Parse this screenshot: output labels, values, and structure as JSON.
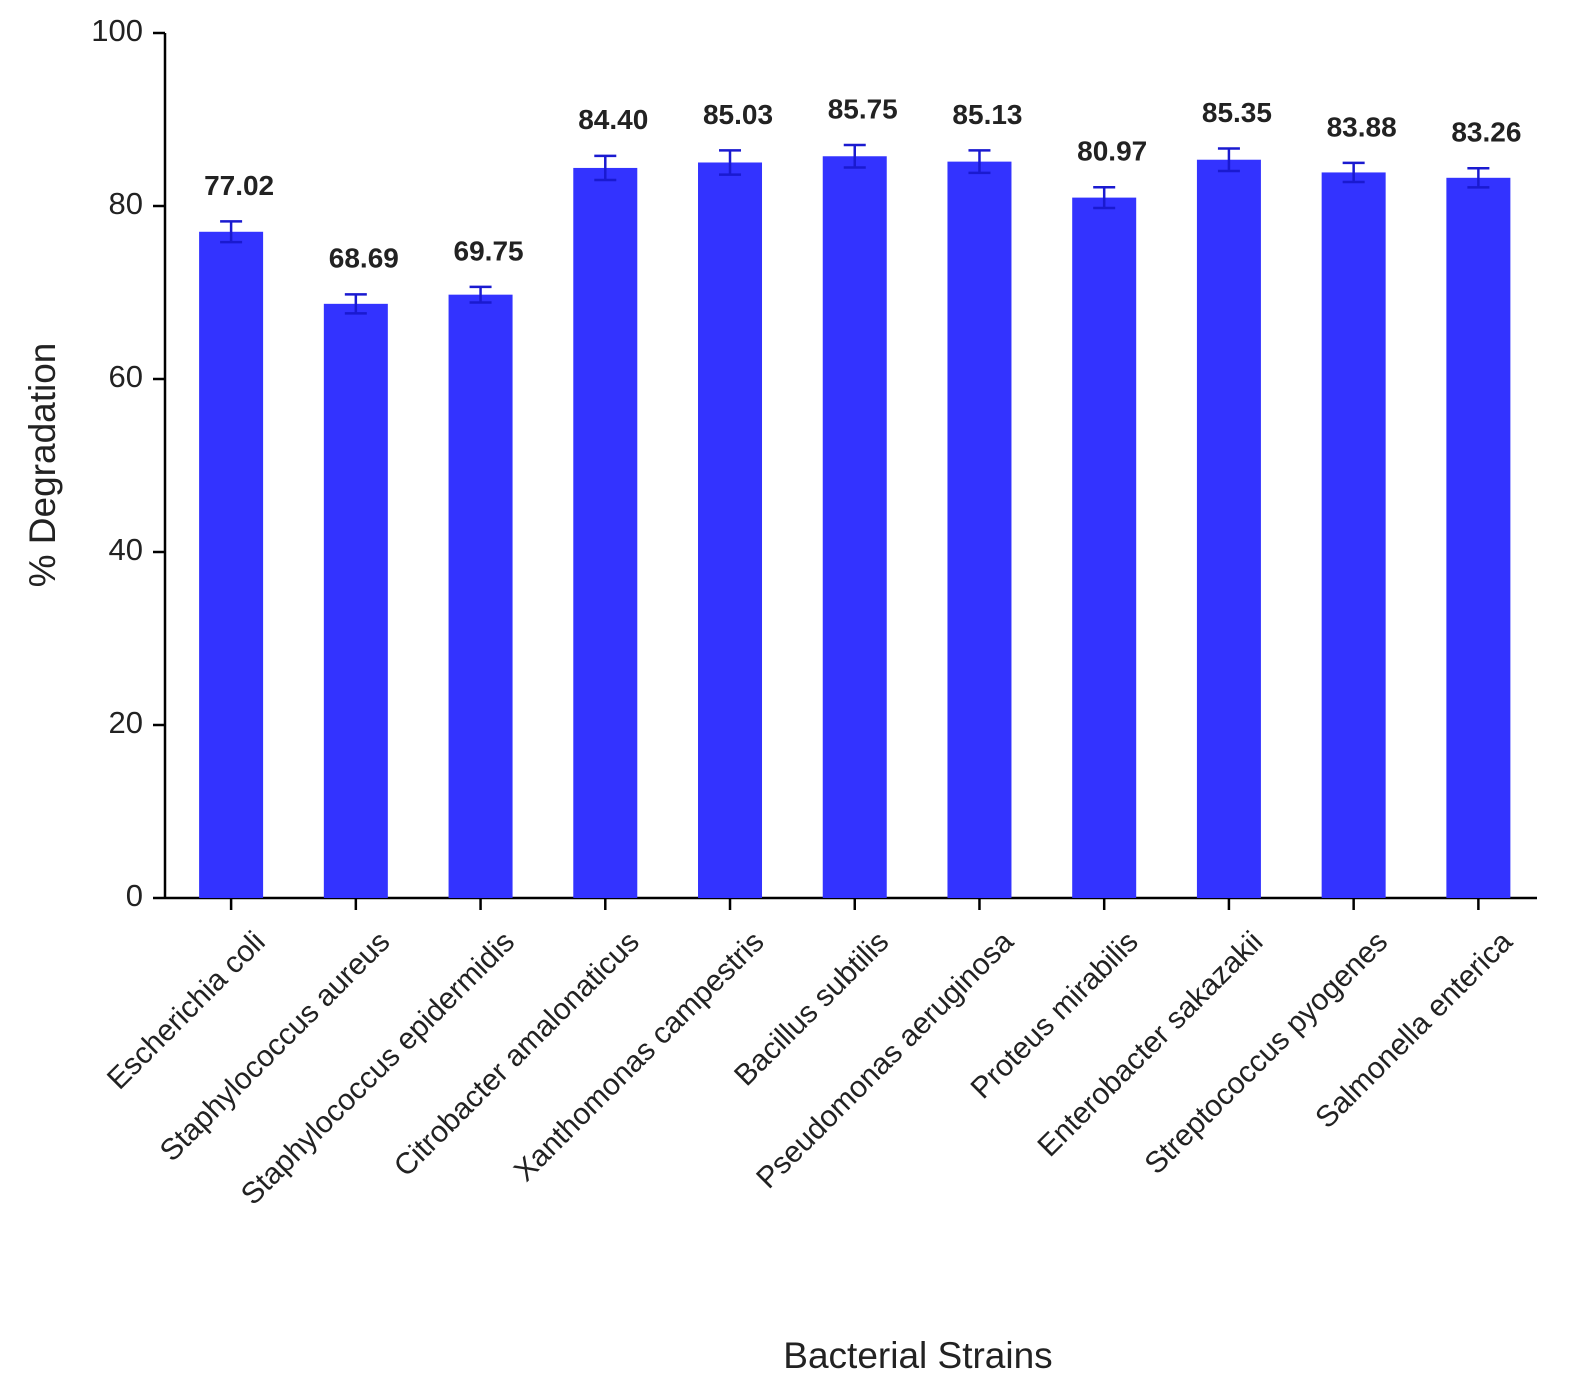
{
  "chart_data": {
    "type": "bar",
    "x_label": "Bacterial Strains",
    "y_label": "% Degradation",
    "categories": [
      "Escherichia coli",
      "Staphylococcus aureus",
      "Staphylococcus epidermidis",
      "Citrobacter amalonaticus",
      "Xanthomonas campestris",
      "Bacillus subtilis",
      "Pseudomonas aeruginosa",
      "Proteus mirabilis",
      "Enterobacter sakazakii",
      "Streptococcus pyogenes",
      "Salmonella enterica"
    ],
    "values": [
      77.02,
      68.69,
      69.75,
      84.4,
      85.03,
      85.75,
      85.13,
      80.97,
      85.35,
      83.88,
      83.26
    ],
    "value_labels": [
      "77.02",
      "68.69",
      "69.75",
      "84.40",
      "85.03",
      "85.75",
      "85.13",
      "80.97",
      "85.35",
      "83.88",
      "83.26"
    ],
    "errors": [
      1.2,
      1.1,
      0.9,
      1.4,
      1.4,
      1.3,
      1.3,
      1.2,
      1.3,
      1.1,
      1.1
    ],
    "color": "#3333ff",
    "ylim": [
      0,
      100
    ],
    "yticks": [
      0,
      20,
      40,
      60,
      80,
      100
    ],
    "grid": false
  }
}
